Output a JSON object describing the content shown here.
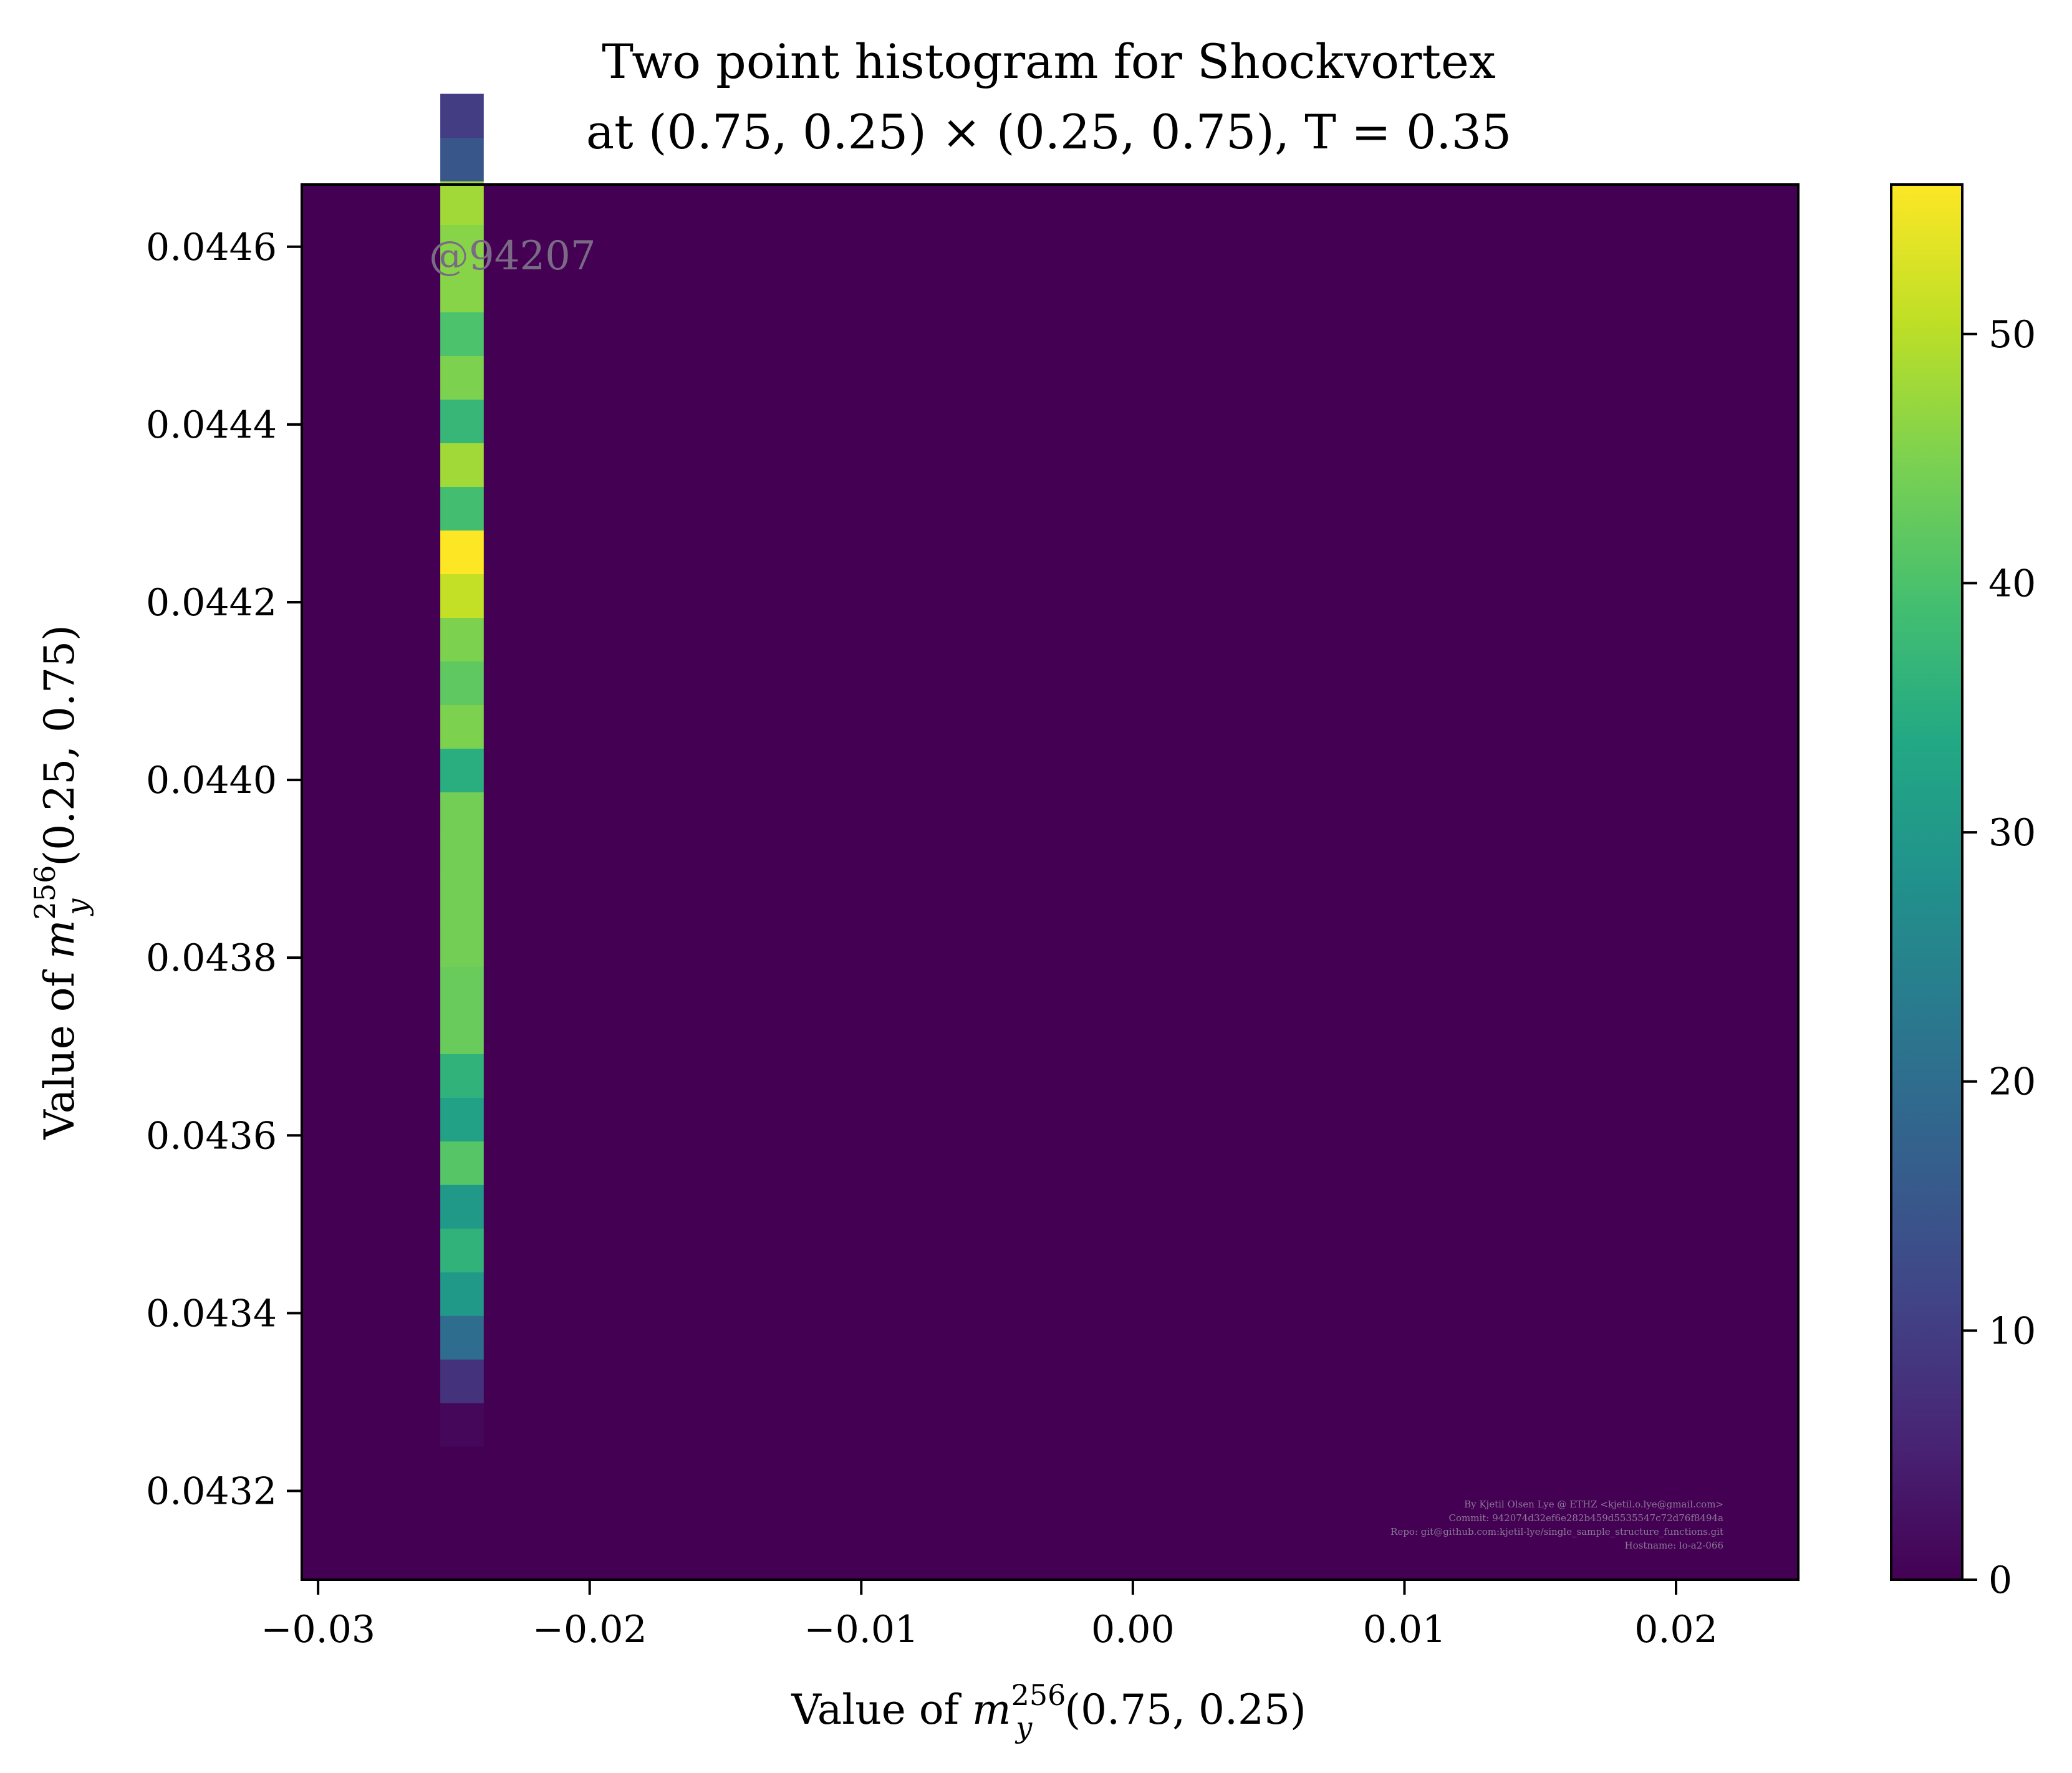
{
  "chart_data": {
    "type": "heatmap",
    "title": {
      "line1": "Two point histogram for Shockvortex",
      "line2": "at (0.75, 0.25) × (0.25, 0.75), T = 0.35"
    },
    "xlabel": {
      "prefix": "Value of ",
      "var": "m",
      "sup": "256",
      "sub": "y",
      "suffix": "(0.75, 0.25)"
    },
    "ylabel": {
      "prefix": "Value of ",
      "var": "m",
      "sup": "256",
      "sub": "y",
      "suffix": "(0.25, 0.75)"
    },
    "xlim": [
      -0.0306,
      0.0245
    ],
    "ylim": [
      0.0431,
      0.04467
    ],
    "xticks": [
      -0.03,
      -0.02,
      -0.01,
      0.0,
      0.01,
      0.02
    ],
    "xtick_labels": [
      "−0.03",
      "−0.02",
      "−0.01",
      "0.00",
      "0.01",
      "0.02"
    ],
    "yticks": [
      0.0432,
      0.0434,
      0.0436,
      0.0438,
      0.044,
      0.0442,
      0.0444,
      0.0446
    ],
    "ytick_labels": [
      "0.0432",
      "0.0434",
      "0.0436",
      "0.0438",
      "0.0440",
      "0.0442",
      "0.0444",
      "0.0446"
    ],
    "colorbar": {
      "colormap": "viridis",
      "range": [
        0,
        56
      ],
      "ticks": [
        0,
        10,
        20,
        30,
        40,
        50
      ],
      "tick_labels": [
        "0",
        "10",
        "20",
        "30",
        "40",
        "50"
      ]
    },
    "column": {
      "x_range": [
        -0.0255,
        -0.0239
      ],
      "y_start": 0.04325,
      "y_bin_width": 4.91e-05,
      "counts": [
        1,
        8,
        20,
        30,
        36,
        30,
        41,
        32,
        36,
        43,
        43,
        44,
        44,
        44,
        44,
        35,
        45,
        42,
        45,
        51,
        56,
        39,
        48,
        37,
        45,
        40,
        46,
        46,
        48,
        15,
        10
      ]
    },
    "watermark": "@94207",
    "credits": [
      "By Kjetil Olsen Lye @ ETHZ <kjetil.o.lye@gmail.com>",
      "Commit: 942074d32ef6e282b459d5535547c72d76f8494a",
      "Repo: git@github.com:kjetil-lye/single_sample_structure_functions.git",
      "Hostname: lo-a2-066"
    ]
  }
}
